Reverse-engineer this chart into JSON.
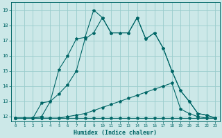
{
  "title": "",
  "xlabel": "Humidex (Indice chaleur)",
  "background_color": "#cce8e8",
  "grid_color": "#99cccc",
  "line_color": "#006666",
  "xlim": [
    -0.5,
    23.5
  ],
  "ylim": [
    11.7,
    19.5
  ],
  "xticks": [
    0,
    1,
    2,
    3,
    4,
    5,
    6,
    7,
    8,
    9,
    10,
    11,
    12,
    13,
    14,
    15,
    16,
    17,
    18,
    19,
    20,
    21,
    22,
    23
  ],
  "yticks": [
    12,
    13,
    14,
    15,
    16,
    17,
    18,
    19
  ],
  "line1_x": [
    0,
    1,
    2,
    3,
    4,
    5,
    6,
    7,
    8,
    9,
    10,
    11,
    12,
    13,
    14,
    15,
    16,
    17,
    18,
    19,
    20,
    21,
    22,
    23
  ],
  "line1_y": [
    11.9,
    11.9,
    11.9,
    11.9,
    11.9,
    11.9,
    11.9,
    11.9,
    11.9,
    11.9,
    11.9,
    11.9,
    11.9,
    11.9,
    11.9,
    11.9,
    11.9,
    11.9,
    11.9,
    11.9,
    11.9,
    11.9,
    11.9,
    11.9
  ],
  "line2_x": [
    0,
    1,
    2,
    3,
    4,
    5,
    6,
    7,
    8,
    9,
    10,
    11,
    12,
    13,
    14,
    15,
    16,
    17,
    18,
    19,
    20,
    21,
    22,
    23
  ],
  "line2_y": [
    11.9,
    11.9,
    11.9,
    11.9,
    11.9,
    11.9,
    12.0,
    12.1,
    12.2,
    12.4,
    12.6,
    12.8,
    13.0,
    13.2,
    13.4,
    13.6,
    13.8,
    14.0,
    14.2,
    12.5,
    12.2,
    12.0,
    11.9,
    11.9
  ],
  "line3_x": [
    0,
    1,
    2,
    3,
    4,
    5,
    6,
    7,
    8,
    9,
    10,
    11,
    12,
    13,
    14,
    15,
    16,
    17,
    18,
    19,
    20,
    21,
    22,
    23
  ],
  "line3_y": [
    11.9,
    11.9,
    11.9,
    12.0,
    13.0,
    13.5,
    14.1,
    15.0,
    17.1,
    17.5,
    18.5,
    17.5,
    17.5,
    17.5,
    18.5,
    17.1,
    17.5,
    16.5,
    15.0,
    13.7,
    13.0,
    12.2,
    12.1,
    11.9
  ],
  "line4_x": [
    0,
    1,
    2,
    3,
    4,
    5,
    6,
    7,
    8,
    9,
    10,
    11,
    12,
    13,
    14,
    15,
    16,
    17,
    18,
    19,
    20,
    21,
    22,
    23
  ],
  "line4_y": [
    11.9,
    11.9,
    11.9,
    12.9,
    13.0,
    15.1,
    16.0,
    17.1,
    17.2,
    19.0,
    18.5,
    17.5,
    17.5,
    17.5,
    18.5,
    17.1,
    17.5,
    16.5,
    15.0,
    13.7,
    13.0,
    12.2,
    12.1,
    11.9
  ]
}
